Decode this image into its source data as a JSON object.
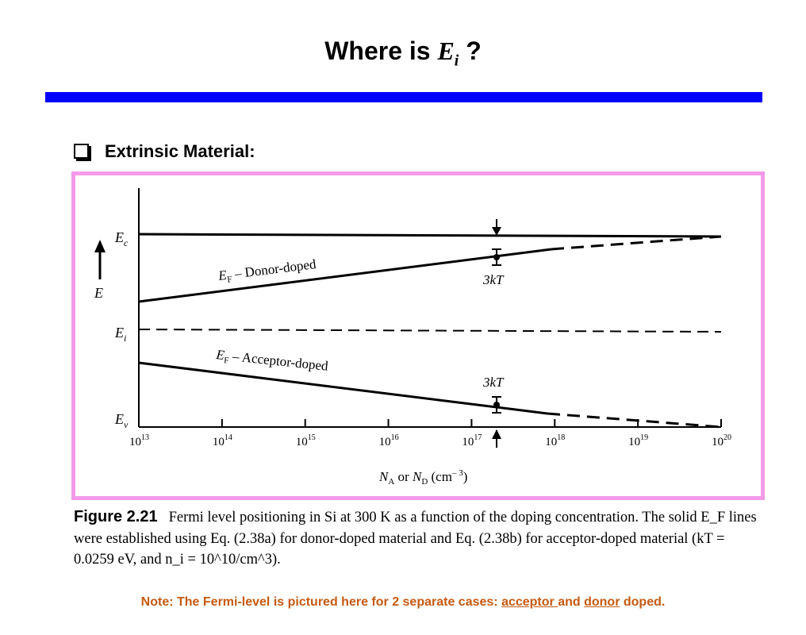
{
  "slide": {
    "title_prefix": "Where is ",
    "title_symbol": "E",
    "title_symbol_sub": "i",
    "title_suffix": " ?",
    "bullet": "Extrinsic Material:"
  },
  "colors": {
    "title_rule": "#0000ff",
    "figure_border": "#f49ae8",
    "note_text": "#c55a11"
  },
  "figure": {
    "level_labels": {
      "ec": "E",
      "ec_sub": "c",
      "ei": "E",
      "ei_sub": "i",
      "ev": "E",
      "ev_sub": "v",
      "energy_axis": "E"
    },
    "line_labels": {
      "donor_main": "E",
      "donor_sub": "F",
      "donor_text": " – Donor-doped",
      "acceptor_main": "E",
      "acceptor_sub": "F",
      "acceptor_text": " – Acceptor-doped"
    },
    "annotations": {
      "donor_gap": "3kT",
      "acceptor_gap": "3kT"
    },
    "x_axis": {
      "na": "N",
      "na_sub": "A",
      "or": " or ",
      "nd": "N",
      "nd_sub": "D",
      "unit_open": " (cm",
      "unit_exp": "– 3",
      "unit_close": ")"
    },
    "tick_labels": [
      {
        "base": "10",
        "exp": "13"
      },
      {
        "base": "10",
        "exp": "14"
      },
      {
        "base": "10",
        "exp": "15"
      },
      {
        "base": "10",
        "exp": "16"
      },
      {
        "base": "10",
        "exp": "17"
      },
      {
        "base": "10",
        "exp": "18"
      },
      {
        "base": "10",
        "exp": "19"
      },
      {
        "base": "10",
        "exp": "20"
      }
    ]
  },
  "chart_data": {
    "type": "line",
    "x": [
      13,
      14,
      15,
      16,
      17,
      18,
      19,
      20
    ],
    "x_scale": "log10 doping concentration",
    "series": [
      {
        "name": "E_F – Donor-doped",
        "solid_range": [
          13,
          17.7
        ],
        "dashed_range": [
          17.7,
          20
        ]
      },
      {
        "name": "E_F – Acceptor-doped",
        "solid_range": [
          13,
          17.7
        ],
        "dashed_range": [
          17.7,
          20
        ]
      }
    ],
    "reference_levels": [
      "E_c",
      "E_i",
      "E_v"
    ]
  },
  "caption": {
    "label": "Figure 2.21",
    "text": "Fermi level positioning in Si at 300 K as a function of the doping concentration. The solid E_F lines were established using Eq. (2.38a) for donor-doped material and Eq. (2.38b) for acceptor-doped material (kT = 0.0259 eV, and n_i = 10^10/cm^3)."
  },
  "note": {
    "prefix": "Note: The Fermi-level is pictured here for 2 separate cases: ",
    "acceptor": "acceptor ",
    "and": "and ",
    "donor": "donor",
    "suffix": " doped."
  }
}
